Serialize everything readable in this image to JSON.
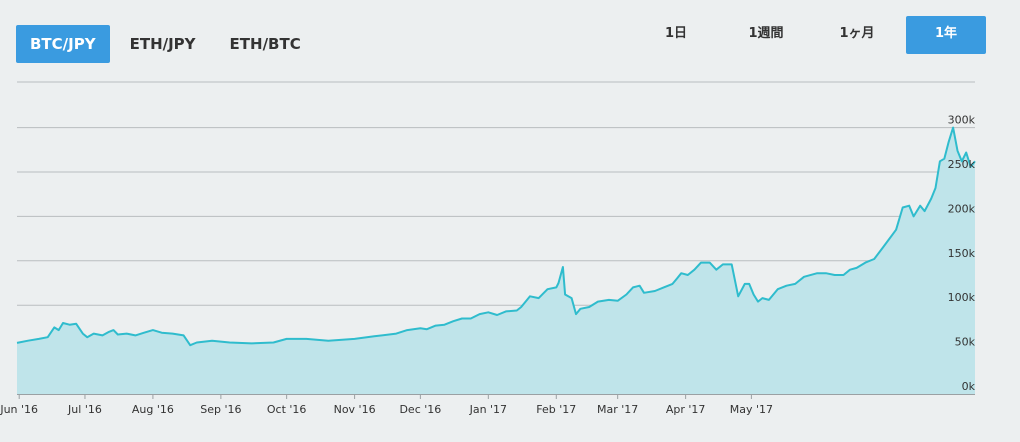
{
  "pair_tabs": [
    {
      "label": "BTC/JPY",
      "active": true
    },
    {
      "label": "ETH/JPY",
      "active": false
    },
    {
      "label": "ETH/BTC",
      "active": false
    }
  ],
  "range_tabs": [
    {
      "label": "1日",
      "active": false
    },
    {
      "label": "1週間",
      "active": false
    },
    {
      "label": "1ヶ月",
      "active": false
    },
    {
      "label": "1年",
      "active": true
    }
  ],
  "colors": {
    "accent": "#3a9be0",
    "line": "#2fbccd",
    "area": "#bfe4ea",
    "grid": "#b9bdbf",
    "tick_text": "#333333"
  },
  "chart_data": {
    "type": "area",
    "title": "",
    "xlabel": "",
    "ylabel": "",
    "ylim": [
      0,
      300000
    ],
    "grid": true,
    "y_ticks": [
      {
        "value": 0,
        "label": "0k"
      },
      {
        "value": 50000,
        "label": "50k"
      },
      {
        "value": 100000,
        "label": "100k"
      },
      {
        "value": 150000,
        "label": "150k"
      },
      {
        "value": 200000,
        "label": "200k"
      },
      {
        "value": 250000,
        "label": "250k"
      },
      {
        "value": 300000,
        "label": "300k"
      }
    ],
    "x_ticks": [
      {
        "date": "2016-06-01",
        "label": "Jun '16"
      },
      {
        "date": "2016-07-01",
        "label": "Jul '16"
      },
      {
        "date": "2016-08-01",
        "label": "Aug '16"
      },
      {
        "date": "2016-09-01",
        "label": "Sep '16"
      },
      {
        "date": "2016-10-01",
        "label": "Oct '16"
      },
      {
        "date": "2016-11-01",
        "label": "Nov '16"
      },
      {
        "date": "2016-12-01",
        "label": "Dec '16"
      },
      {
        "date": "2017-01-01",
        "label": "Jan '17"
      },
      {
        "date": "2017-02-01",
        "label": "Feb '17"
      },
      {
        "date": "2017-03-01",
        "label": "Mar '17"
      },
      {
        "date": "2017-04-01",
        "label": "Apr '17"
      },
      {
        "date": "2017-05-01",
        "label": "May '17"
      }
    ],
    "series": [
      {
        "points": [
          [
            "2016-05-31",
            57500
          ],
          [
            "2016-06-05",
            60000
          ],
          [
            "2016-06-10",
            62000
          ],
          [
            "2016-06-14",
            64000
          ],
          [
            "2016-06-17",
            75000
          ],
          [
            "2016-06-19",
            72000
          ],
          [
            "2016-06-21",
            80000
          ],
          [
            "2016-06-24",
            78000
          ],
          [
            "2016-06-27",
            79000
          ],
          [
            "2016-06-30",
            68000
          ],
          [
            "2016-07-02",
            64000
          ],
          [
            "2016-07-05",
            68000
          ],
          [
            "2016-07-09",
            66000
          ],
          [
            "2016-07-12",
            70000
          ],
          [
            "2016-07-14",
            72000
          ],
          [
            "2016-07-16",
            67000
          ],
          [
            "2016-07-20",
            68000
          ],
          [
            "2016-07-24",
            66000
          ],
          [
            "2016-07-28",
            69000
          ],
          [
            "2016-08-01",
            72000
          ],
          [
            "2016-08-05",
            69000
          ],
          [
            "2016-08-10",
            68000
          ],
          [
            "2016-08-15",
            66000
          ],
          [
            "2016-08-18",
            55000
          ],
          [
            "2016-08-21",
            58000
          ],
          [
            "2016-08-28",
            60000
          ],
          [
            "2016-09-05",
            58000
          ],
          [
            "2016-09-15",
            57000
          ],
          [
            "2016-09-25",
            58000
          ],
          [
            "2016-10-01",
            62000
          ],
          [
            "2016-10-10",
            62000
          ],
          [
            "2016-10-20",
            60000
          ],
          [
            "2016-11-01",
            62000
          ],
          [
            "2016-11-10",
            65000
          ],
          [
            "2016-11-20",
            68000
          ],
          [
            "2016-11-25",
            72000
          ],
          [
            "2016-12-01",
            74000
          ],
          [
            "2016-12-04",
            73000
          ],
          [
            "2016-12-08",
            77000
          ],
          [
            "2016-12-12",
            78000
          ],
          [
            "2016-12-16",
            82000
          ],
          [
            "2016-12-20",
            85000
          ],
          [
            "2016-12-24",
            85000
          ],
          [
            "2016-12-28",
            90000
          ],
          [
            "2017-01-01",
            92000
          ],
          [
            "2017-01-05",
            89000
          ],
          [
            "2017-01-09",
            93000
          ],
          [
            "2017-01-14",
            94000
          ],
          [
            "2017-01-16",
            98000
          ],
          [
            "2017-01-20",
            110000
          ],
          [
            "2017-01-24",
            108000
          ],
          [
            "2017-01-28",
            118000
          ],
          [
            "2017-02-01",
            120000
          ],
          [
            "2017-02-02",
            125000
          ],
          [
            "2017-02-04",
            143000
          ],
          [
            "2017-02-05",
            112000
          ],
          [
            "2017-02-08",
            108000
          ],
          [
            "2017-02-10",
            90000
          ],
          [
            "2017-02-12",
            96000
          ],
          [
            "2017-02-16",
            98000
          ],
          [
            "2017-02-20",
            104000
          ],
          [
            "2017-02-25",
            106000
          ],
          [
            "2017-03-01",
            105000
          ],
          [
            "2017-03-05",
            112000
          ],
          [
            "2017-03-08",
            120000
          ],
          [
            "2017-03-11",
            122000
          ],
          [
            "2017-03-13",
            114000
          ],
          [
            "2017-03-18",
            116000
          ],
          [
            "2017-03-22",
            120000
          ],
          [
            "2017-03-26",
            124000
          ],
          [
            "2017-03-28",
            130000
          ],
          [
            "2017-03-30",
            136000
          ],
          [
            "2017-04-02",
            134000
          ],
          [
            "2017-04-05",
            140000
          ],
          [
            "2017-04-08",
            148000
          ],
          [
            "2017-04-12",
            148000
          ],
          [
            "2017-04-15",
            140000
          ],
          [
            "2017-04-18",
            146000
          ],
          [
            "2017-04-22",
            146000
          ],
          [
            "2017-04-25",
            110000
          ],
          [
            "2017-04-28",
            124000
          ],
          [
            "2017-04-30",
            124000
          ],
          [
            "2017-05-02",
            112000
          ],
          [
            "2017-05-04",
            104000
          ],
          [
            "2017-05-06",
            108000
          ],
          [
            "2017-05-09",
            106000
          ],
          [
            "2017-05-13",
            118000
          ],
          [
            "2017-05-17",
            122000
          ],
          [
            "2017-05-21",
            124000
          ],
          [
            "2017-05-25",
            132000
          ],
          [
            "2017-05-31",
            136000
          ],
          [
            "2017-06-04",
            136000
          ],
          [
            "2017-06-08",
            134000
          ],
          [
            "2017-06-12",
            134000
          ],
          [
            "2017-06-15",
            140000
          ],
          [
            "2017-06-18",
            142000
          ],
          [
            "2017-06-22",
            148000
          ],
          [
            "2017-06-26",
            152000
          ],
          [
            "2017-06-30",
            165000
          ],
          [
            "2017-07-03",
            175000
          ],
          [
            "2017-07-06",
            185000
          ],
          [
            "2017-07-09",
            210000
          ],
          [
            "2017-07-12",
            212000
          ],
          [
            "2017-07-14",
            200000
          ],
          [
            "2017-07-17",
            212000
          ],
          [
            "2017-07-19",
            206000
          ],
          [
            "2017-07-22",
            220000
          ],
          [
            "2017-07-24",
            232000
          ],
          [
            "2017-07-26",
            262000
          ],
          [
            "2017-07-28",
            265000
          ],
          [
            "2017-07-30",
            284000
          ],
          [
            "2017-08-01",
            300000
          ],
          [
            "2017-08-03",
            274000
          ],
          [
            "2017-08-05",
            262000
          ],
          [
            "2017-08-07",
            272000
          ],
          [
            "2017-08-09",
            256000
          ],
          [
            "2017-08-11",
            262000
          ]
        ]
      }
    ]
  }
}
